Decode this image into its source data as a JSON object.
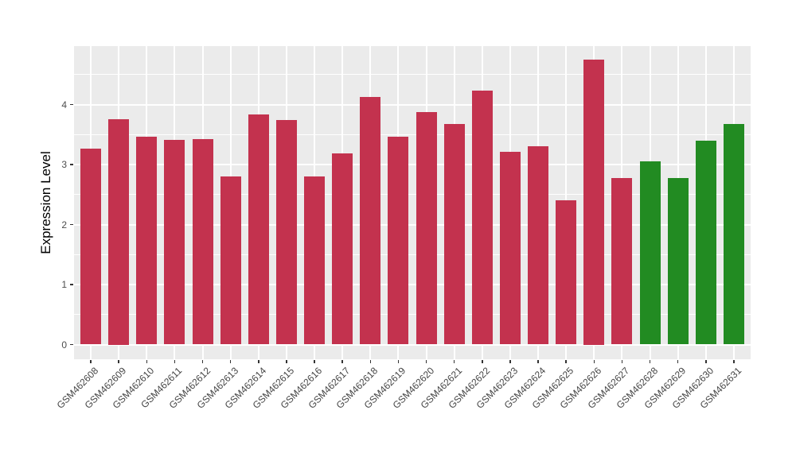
{
  "chart_data": {
    "type": "bar",
    "title": "",
    "xlabel": "",
    "ylabel": "Expression Level",
    "categories": [
      "GSM462608",
      "GSM462609",
      "GSM462610",
      "GSM462611",
      "GSM462612",
      "GSM462613",
      "GSM462614",
      "GSM462615",
      "GSM462616",
      "GSM462617",
      "GSM462618",
      "GSM462619",
      "GSM462620",
      "GSM462621",
      "GSM462622",
      "GSM462623",
      "GSM462624",
      "GSM462625",
      "GSM462626",
      "GSM462627",
      "GSM462628",
      "GSM462629",
      "GSM462630",
      "GSM462631"
    ],
    "values": [
      3.27,
      3.75,
      3.46,
      3.41,
      3.42,
      2.8,
      3.84,
      3.74,
      2.8,
      3.19,
      4.13,
      3.47,
      3.88,
      3.67,
      4.23,
      3.21,
      3.31,
      2.41,
      4.75,
      2.77,
      3.05,
      2.78,
      3.4,
      3.68
    ],
    "groups": [
      "red",
      "red",
      "red",
      "red",
      "red",
      "red",
      "red",
      "red",
      "red",
      "red",
      "red",
      "red",
      "red",
      "red",
      "red",
      "red",
      "red",
      "red",
      "red",
      "red",
      "green",
      "green",
      "green",
      "green"
    ],
    "group_colors": {
      "red": "#c3324e",
      "green": "#228b22"
    },
    "yticks": [
      "0",
      "1",
      "2",
      "3",
      "4"
    ],
    "ytick_values": [
      0,
      1,
      2,
      3,
      4
    ],
    "minor_ytick_values": [
      0.5,
      1.5,
      2.5,
      3.5,
      4.5
    ],
    "ylim": [
      -0.24,
      4.97
    ],
    "grid": true,
    "legend_position": "none",
    "panel_background": "#ebebeb",
    "grid_color": "#ffffff"
  }
}
